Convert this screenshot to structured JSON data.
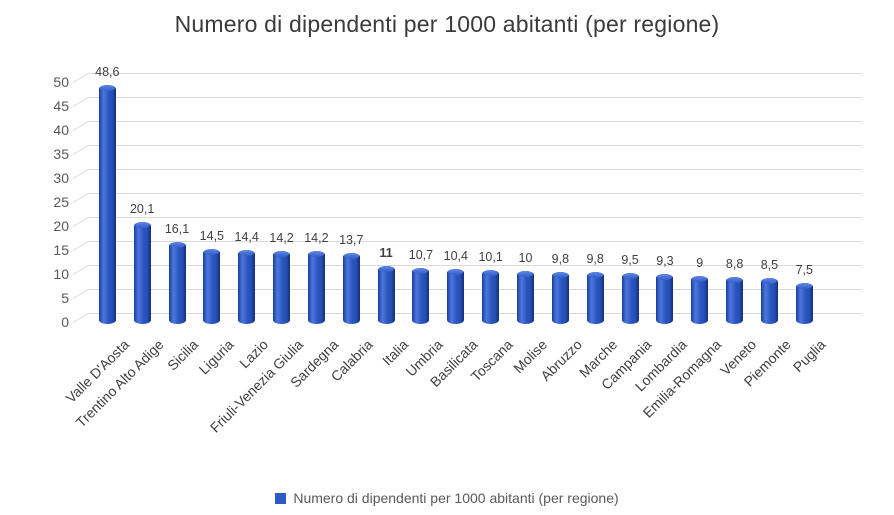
{
  "title": "Numero di dipendenti per 1000 abitanti (per regione)",
  "legend": {
    "label": "Numero di dipendenti per 1000 abitanti (per regione)"
  },
  "colors": {
    "title_color": "#3B3B3B",
    "axis_color": "#595959",
    "grid_color": "#D9D9D9",
    "datalabel_color": "#404040",
    "legend_color": "#595959",
    "bar_main": "#2E58C4"
  },
  "chart_data": {
    "type": "bar",
    "style": "3d-cylinder",
    "title": "Numero di dipendenti per 1000 abitanti (per regione)",
    "categories": [
      "Valle D'Aosta",
      "Trentino Alto Adige",
      "Sicilia",
      "Liguria",
      "Lazio",
      "Friuli-Venezia Giulia",
      "Sardegna",
      "Calabria",
      "Italia",
      "Umbria",
      "Basilicata",
      "Toscana",
      "Molise",
      "Abruzzo",
      "Marche",
      "Campania",
      "Lombardia",
      "Emilia-Romagna",
      "Veneto",
      "Piemonte",
      "Puglia"
    ],
    "values": [
      48.6,
      20.1,
      16.1,
      14.5,
      14.4,
      14.2,
      14.2,
      13.7,
      11,
      10.7,
      10.4,
      10.1,
      10,
      9.8,
      9.8,
      9.5,
      9.3,
      9,
      8.8,
      8.5,
      7.5
    ],
    "value_labels": [
      "48,6",
      "20,1",
      "16,1",
      "14,5",
      "14,4",
      "14,2",
      "14,2",
      "13,7",
      "11",
      "10,7",
      "10,4",
      "10,1",
      "10",
      "9,8",
      "9,8",
      "9,5",
      "9,3",
      "9",
      "8,8",
      "8,5",
      "7,5"
    ],
    "emphasized_value_index": 8,
    "ylim": [
      0,
      50
    ],
    "yticks": [
      0,
      5,
      10,
      15,
      20,
      25,
      30,
      35,
      40,
      45,
      50
    ],
    "xlabel": "",
    "ylabel": "",
    "grid": true,
    "legend_position": "bottom",
    "x_label_rotation_deg": 45,
    "decimal_separator": ","
  }
}
